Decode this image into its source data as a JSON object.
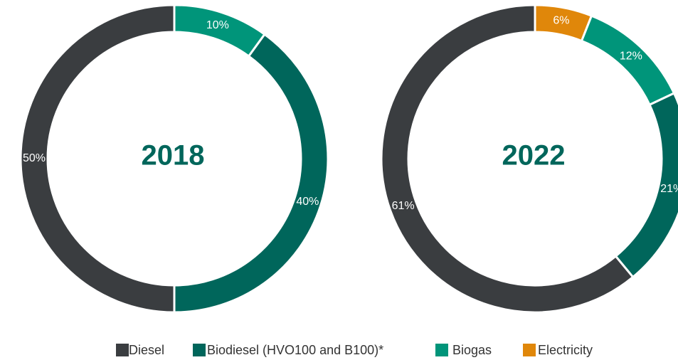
{
  "chart_data": [
    {
      "type": "donut",
      "center_label": "2018",
      "values": [
        10,
        40,
        50
      ],
      "value_labels": [
        "10%",
        "40%",
        "50%"
      ],
      "colors": [
        "#00957a",
        "#00665b",
        "#3a3d40"
      ]
    },
    {
      "type": "donut",
      "center_label": "2022",
      "values": [
        6,
        12,
        21,
        61
      ],
      "value_labels": [
        "6%",
        "12%",
        "21%",
        "61%"
      ],
      "colors": [
        "#e0870a",
        "#00957a",
        "#00665b",
        "#3a3d40"
      ]
    }
  ],
  "legend": [
    {
      "name": "Diesel",
      "color": "#3a3d40"
    },
    {
      "name": "Biodiesel (HVO100 and B100)*",
      "color": "#00665b"
    },
    {
      "name": "Biogas",
      "color": "#00957a"
    },
    {
      "name": "Electricity",
      "color": "#e0870a"
    }
  ]
}
